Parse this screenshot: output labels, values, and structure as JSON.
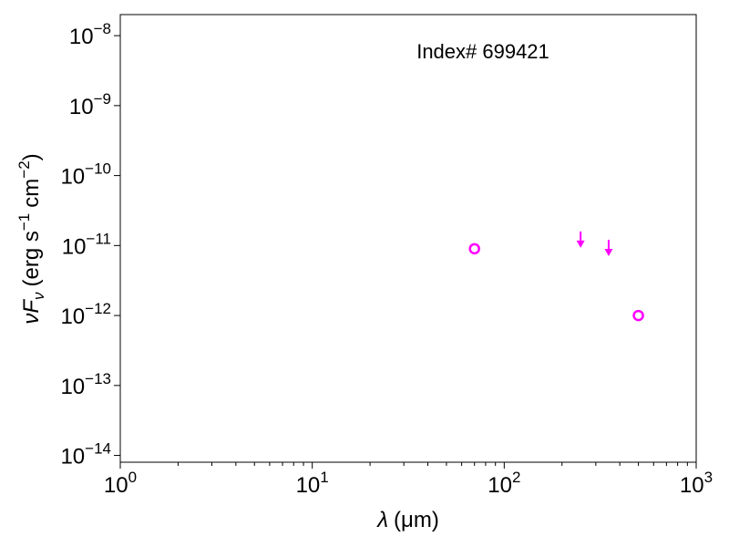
{
  "chart_data": {
    "type": "scatter",
    "annotation": "Index# 699421",
    "xlabel": {
      "symbol": "λ",
      "unit": "(μm)"
    },
    "ylabel": {
      "symbol": "νF",
      "subscript": "ν",
      "unit": "(erg s",
      "exp1": "−1",
      "unit2": "cm",
      "exp2": "−2",
      "close": ")"
    },
    "x_scale": "log",
    "y_scale": "log",
    "xlim": [
      1,
      1000
    ],
    "ylim": [
      8e-15,
      2e-08
    ],
    "x_ticks": [
      {
        "value": 1,
        "base": "10",
        "exp": "0"
      },
      {
        "value": 10,
        "base": "10",
        "exp": "1"
      },
      {
        "value": 100,
        "base": "10",
        "exp": "2"
      },
      {
        "value": 1000,
        "base": "10",
        "exp": "3"
      }
    ],
    "y_ticks": [
      {
        "value": 1e-14,
        "base": "10",
        "exp": "−14"
      },
      {
        "value": 1e-13,
        "base": "10",
        "exp": "−13"
      },
      {
        "value": 1e-12,
        "base": "10",
        "exp": "−12"
      },
      {
        "value": 1e-11,
        "base": "10",
        "exp": "−11"
      },
      {
        "value": 1e-10,
        "base": "10",
        "exp": "−10"
      },
      {
        "value": 1e-09,
        "base": "10",
        "exp": "−9"
      },
      {
        "value": 1e-08,
        "base": "10",
        "exp": "−8"
      }
    ],
    "grid": false,
    "color": "#ff00ff",
    "series": [
      {
        "marker": "open-circle",
        "points": [
          {
            "x": 70,
            "y": 9e-12
          },
          {
            "x": 500,
            "y": 1e-12
          }
        ]
      },
      {
        "marker": "upper-limit-arrow",
        "points": [
          {
            "x": 250,
            "y": 1.25e-11
          },
          {
            "x": 350,
            "y": 9.5e-12
          }
        ]
      }
    ]
  }
}
